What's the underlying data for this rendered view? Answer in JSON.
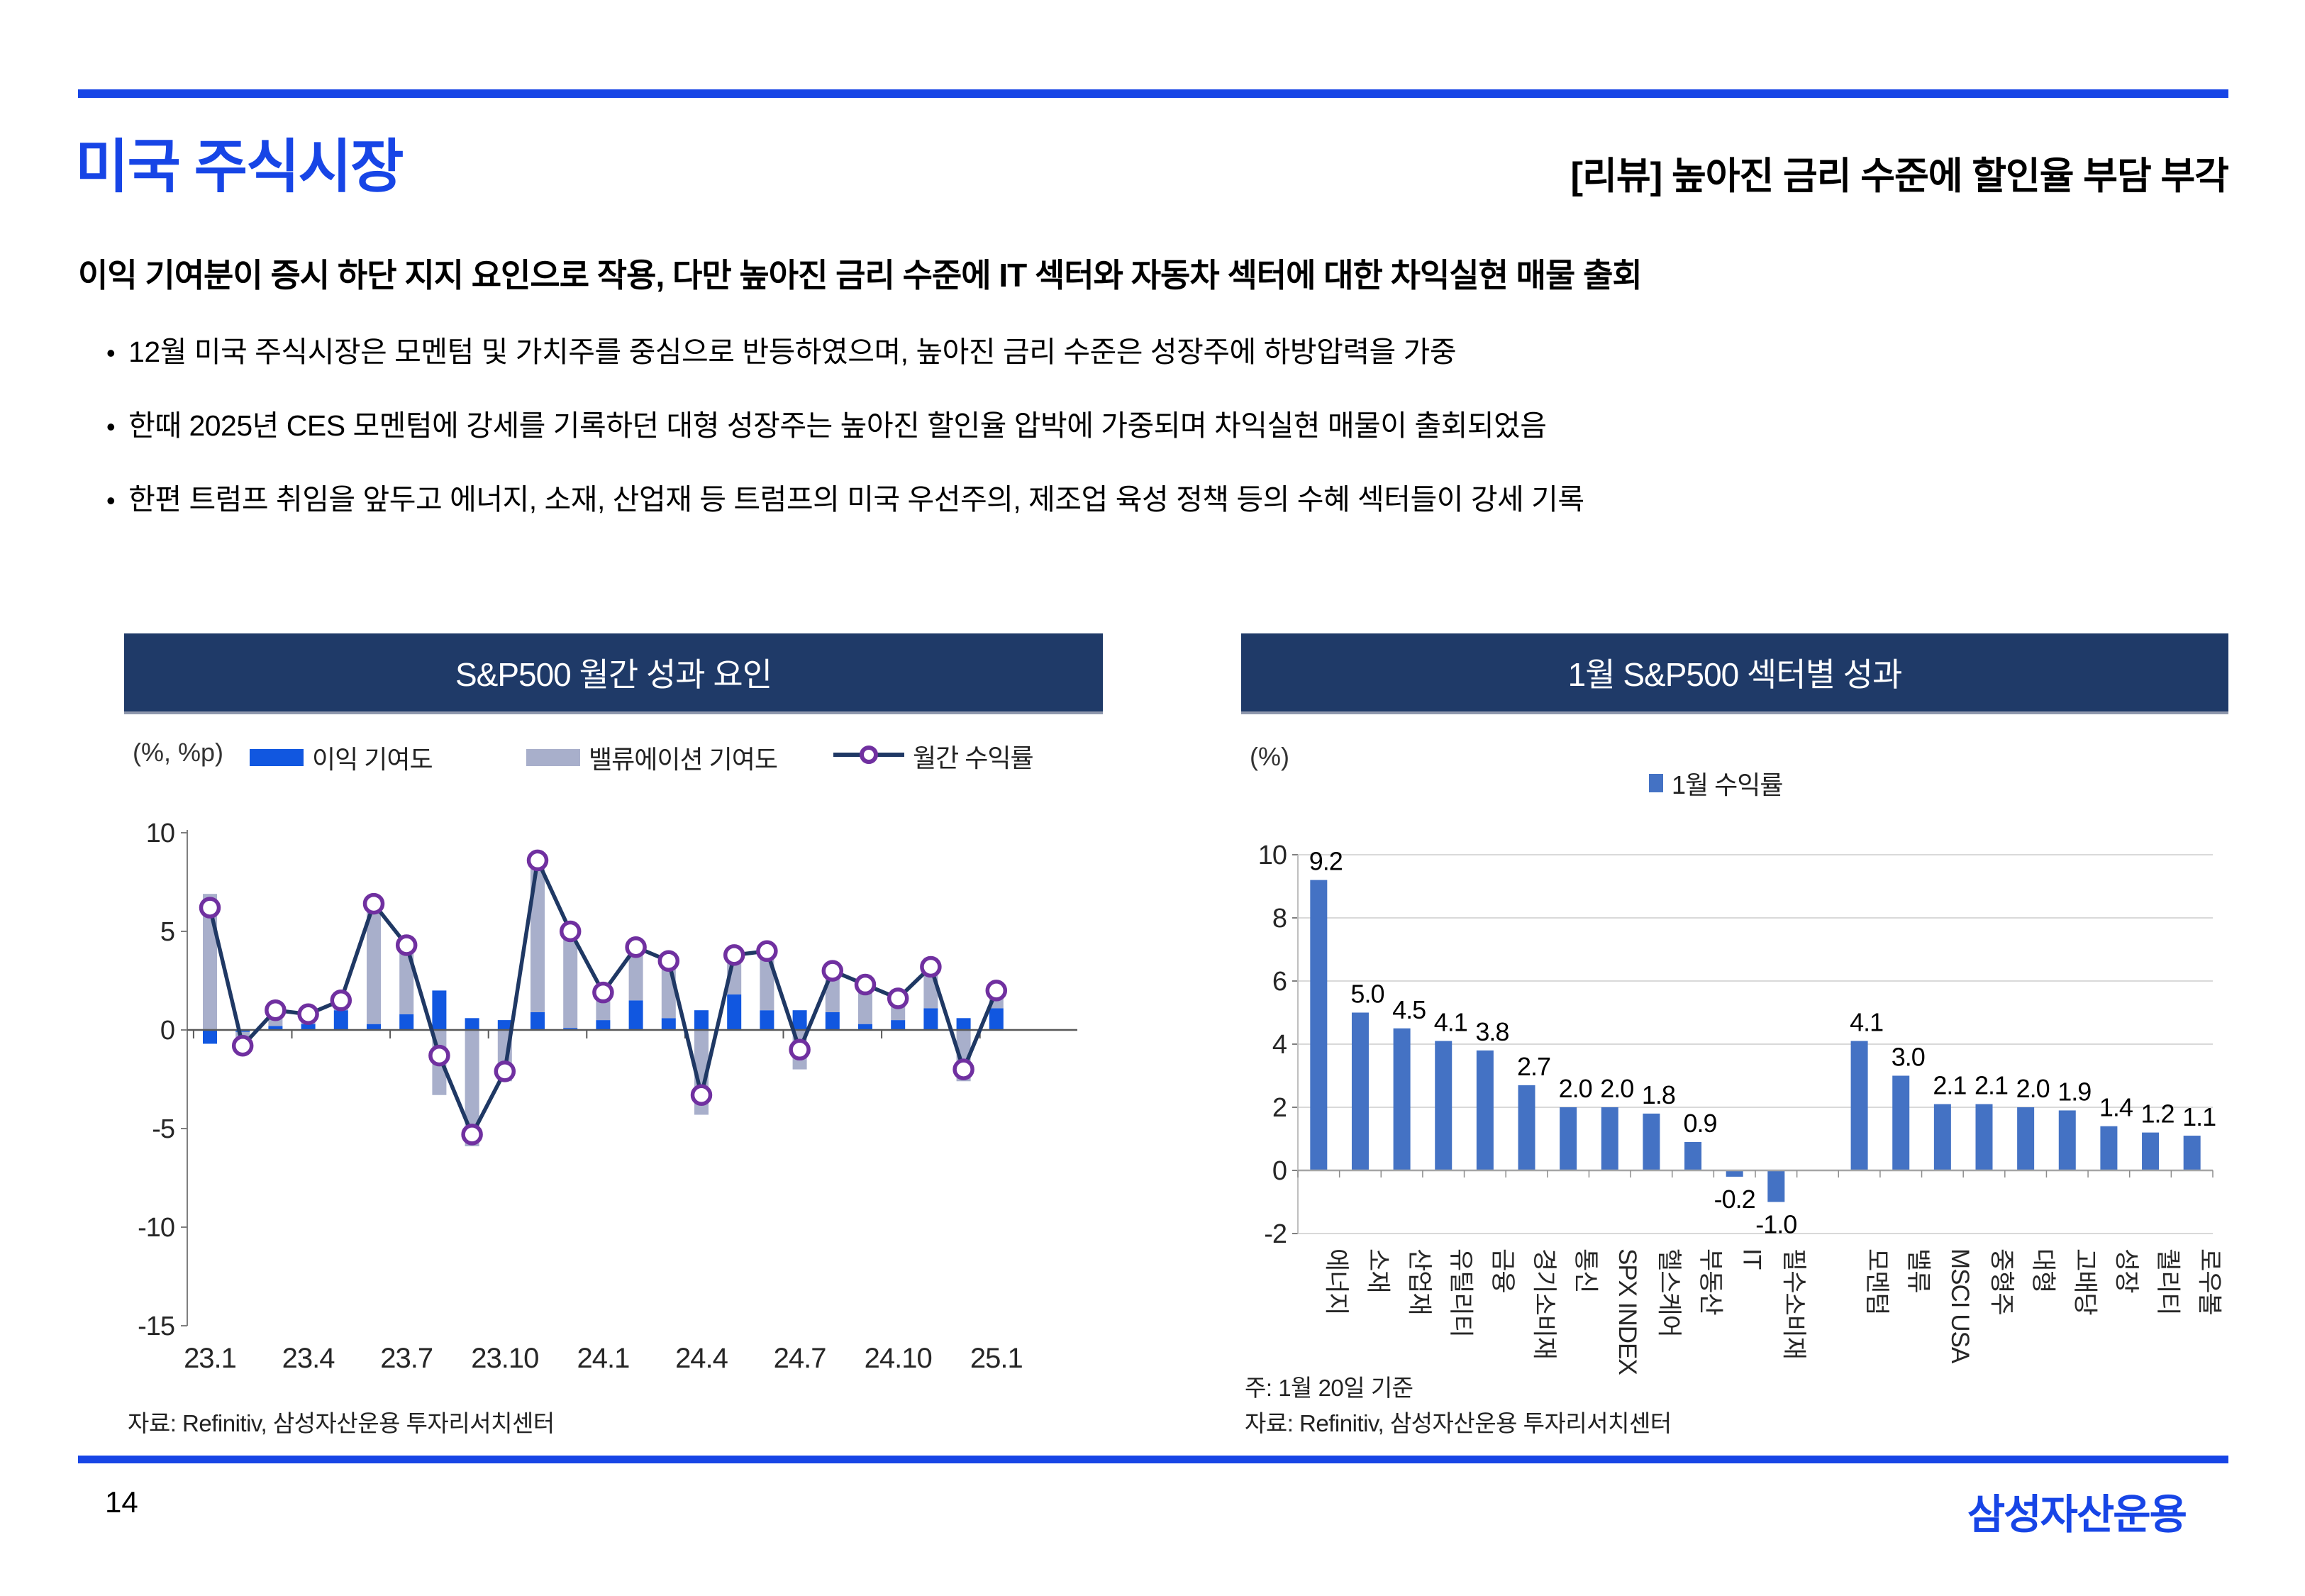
{
  "page": {
    "number": "14",
    "logo_text": "삼성자산운용"
  },
  "colors": {
    "accent_blue": "#1745E6",
    "header_navy": "#1F3A68",
    "earnings_blue": "#1157E0",
    "valuation_gray": "#A8AFCB",
    "line_navy": "#1F3864",
    "marker_purple": "#7030A0",
    "sector_bar_blue": "#4472C4",
    "gridline_gray": "#D9D9D9"
  },
  "header": {
    "title": "미국 주식시장",
    "review": "[리뷰] 높아진 금리 수준에 할인율 부담 부각"
  },
  "summary": {
    "lead": "이익 기여분이 증시 하단 지지 요인으로 작용, 다만 높아진 금리 수준에 IT 섹터와 자동차 섹터에 대한 차익실현 매물 출회",
    "bullets": [
      "12월 미국 주식시장은 모멘텀 및 가치주를 중심으로 반등하였으며, 높아진 금리 수준은 성장주에 하방압력을 가중",
      "한때 2025년 CES 모멘텀에 강세를 기록하던 대형 성장주는 높아진 할인율 압박에 가중되며 차익실현 매물이 출회되었음",
      "한편 트럼프 취임을 앞두고 에너지, 소재, 산업재 등 트럼프의 미국 우선주의, 제조업 육성 정책 등의 수혜 섹터들이 강세 기록"
    ]
  },
  "chart_data": [
    {
      "type": "combo",
      "panel_title": "S&P500 월간 성과 요인",
      "unit_label": "(%, %p)",
      "legend": [
        {
          "label": "이익 기여도",
          "type": "bar",
          "color": "#1157E0"
        },
        {
          "label": "밸류에이션 기여도",
          "type": "bar",
          "color": "#A8AFCB"
        },
        {
          "label": "월간 수익률",
          "type": "line",
          "line_color": "#1F3864",
          "marker_color": "#7030A0"
        }
      ],
      "x": [
        "23.1",
        "23.2",
        "23.3",
        "23.4",
        "23.5",
        "23.6",
        "23.7",
        "23.8",
        "23.9",
        "23.10",
        "23.11",
        "23.12",
        "24.1",
        "24.2",
        "24.3",
        "24.4",
        "24.5",
        "24.6",
        "24.7",
        "24.8",
        "24.9",
        "24.10",
        "24.11",
        "24.12",
        "25.1"
      ],
      "x_tick_indices": [
        0,
        3,
        6,
        9,
        12,
        15,
        18,
        21,
        24
      ],
      "x_tick_labels": [
        "23.1",
        "23.4",
        "23.7",
        "23.10",
        "24.1",
        "24.4",
        "24.7",
        "24.10",
        "25.1"
      ],
      "series": [
        {
          "name": "이익 기여도",
          "values": [
            -0.7,
            -0.1,
            0.2,
            0.3,
            1.0,
            0.3,
            0.8,
            2.0,
            0.6,
            0.5,
            0.9,
            0.1,
            0.5,
            1.5,
            0.6,
            1.0,
            1.8,
            1.0,
            1.0,
            0.9,
            0.3,
            0.5,
            1.1,
            0.6,
            1.1
          ]
        },
        {
          "name": "밸류에이션 기여도",
          "values": [
            6.9,
            -0.7,
            0.8,
            0.5,
            0.5,
            6.1,
            3.5,
            -3.3,
            -5.9,
            -2.6,
            7.7,
            4.9,
            1.4,
            2.7,
            2.9,
            -4.3,
            2.0,
            3.0,
            -2.0,
            2.1,
            2.0,
            1.1,
            2.1,
            -2.6,
            0.9
          ]
        },
        {
          "name": "월간 수익률",
          "values": [
            6.2,
            -0.8,
            1.0,
            0.8,
            1.5,
            6.4,
            4.3,
            -1.3,
            -5.3,
            -2.1,
            8.6,
            5.0,
            1.9,
            4.2,
            3.5,
            -3.3,
            3.8,
            4.0,
            -1.0,
            3.0,
            2.3,
            1.6,
            3.2,
            -2.0,
            2.0
          ]
        }
      ],
      "ylim": [
        -15,
        10
      ],
      "yticks": [
        10,
        5,
        0,
        -5,
        -10,
        -15
      ],
      "grid": "off",
      "legend_position": "top",
      "source": "자료: Refinitiv, 삼성자산운용 투자리서치센터"
    },
    {
      "type": "bar",
      "panel_title": "1월 S&P500 섹터별 성과",
      "unit_label": "(%)",
      "legend": [
        {
          "label": "1월 수익률",
          "type": "bar",
          "color": "#4472C4"
        }
      ],
      "categories": [
        "에너지",
        "소재",
        "산업재",
        "유틸리티",
        "금융",
        "경기소비재",
        "통신",
        "SPX INDEX",
        "헬스케어",
        "부동산",
        "IT",
        "필수소비재",
        "",
        "모멘텀",
        "밸류",
        "MSCI USA",
        "중형주",
        "대형",
        "고배당",
        "성장",
        "퀄리티",
        "로우볼"
      ],
      "values": [
        9.2,
        5.0,
        4.5,
        4.1,
        3.8,
        2.7,
        2.0,
        2.0,
        1.8,
        0.9,
        -0.2,
        -1.0,
        null,
        4.1,
        3.0,
        2.1,
        2.1,
        2.0,
        1.9,
        1.4,
        1.2,
        1.1
      ],
      "ylim": [
        -2,
        10
      ],
      "yticks": [
        10,
        8,
        6,
        4,
        2,
        0,
        -2
      ],
      "grid": "horizontal",
      "legend_position": "top",
      "note": "주: 1월 20일 기준",
      "source": "자료: Refinitiv, 삼성자산운용 투자리서치센터"
    }
  ]
}
